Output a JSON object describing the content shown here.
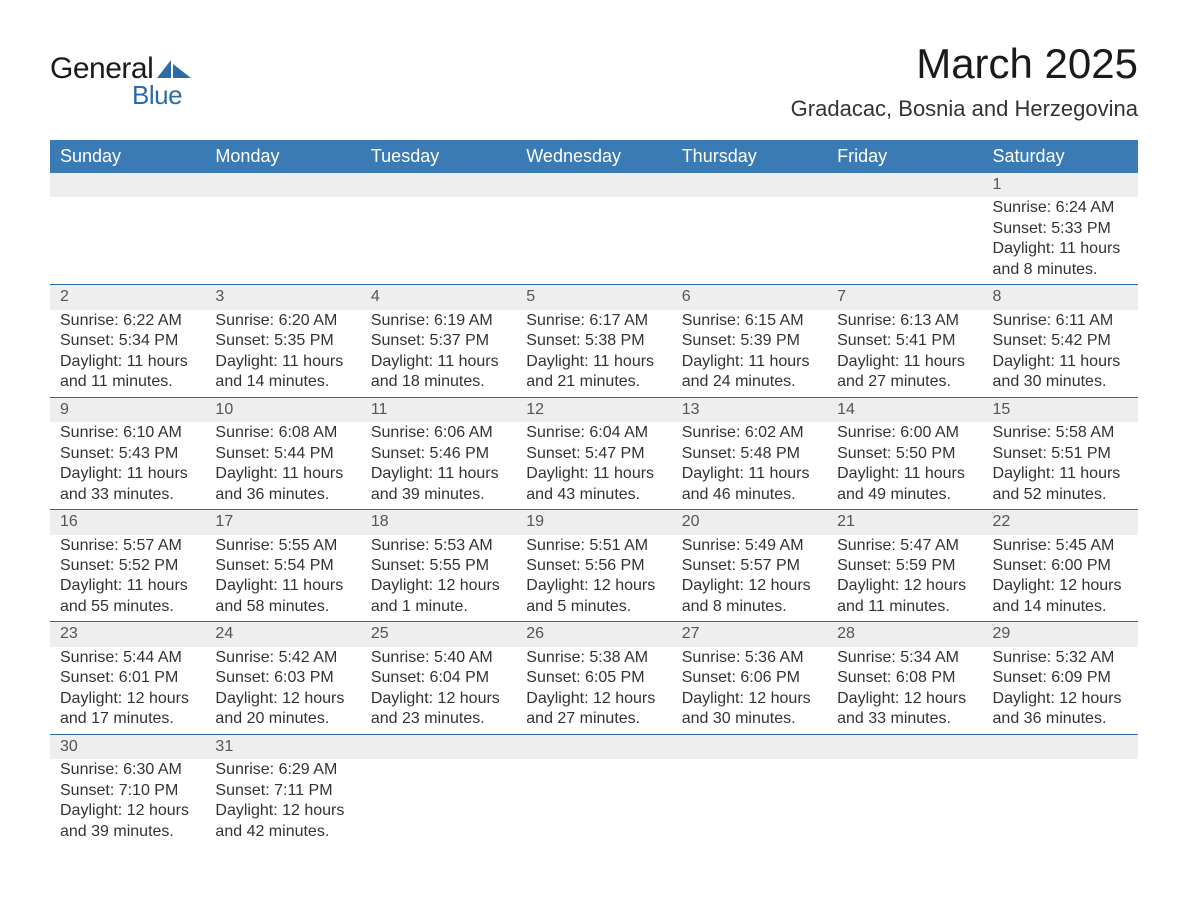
{
  "logo": {
    "word1": "General",
    "word2": "Blue",
    "shape_color": "#2a6ba8"
  },
  "title": "March 2025",
  "location": "Gradacac, Bosnia and Herzegovina",
  "colors": {
    "header_bg": "#3a7ab5",
    "header_text": "#ffffff",
    "daynum_bg": "#eeeeee",
    "row_border": "#2a6ba8",
    "text": "#333333",
    "background": "#ffffff"
  },
  "typography": {
    "title_fontsize": 42,
    "location_fontsize": 22,
    "dayheader_fontsize": 18,
    "body_fontsize": 16
  },
  "day_headers": [
    "Sunday",
    "Monday",
    "Tuesday",
    "Wednesday",
    "Thursday",
    "Friday",
    "Saturday"
  ],
  "weeks": [
    {
      "nums": [
        "",
        "",
        "",
        "",
        "",
        "",
        "1"
      ],
      "days": [
        null,
        null,
        null,
        null,
        null,
        null,
        {
          "sunrise": "Sunrise: 6:24 AM",
          "sunset": "Sunset: 5:33 PM",
          "d1": "Daylight: 11 hours",
          "d2": "and 8 minutes."
        }
      ]
    },
    {
      "nums": [
        "2",
        "3",
        "4",
        "5",
        "6",
        "7",
        "8"
      ],
      "days": [
        {
          "sunrise": "Sunrise: 6:22 AM",
          "sunset": "Sunset: 5:34 PM",
          "d1": "Daylight: 11 hours",
          "d2": "and 11 minutes."
        },
        {
          "sunrise": "Sunrise: 6:20 AM",
          "sunset": "Sunset: 5:35 PM",
          "d1": "Daylight: 11 hours",
          "d2": "and 14 minutes."
        },
        {
          "sunrise": "Sunrise: 6:19 AM",
          "sunset": "Sunset: 5:37 PM",
          "d1": "Daylight: 11 hours",
          "d2": "and 18 minutes."
        },
        {
          "sunrise": "Sunrise: 6:17 AM",
          "sunset": "Sunset: 5:38 PM",
          "d1": "Daylight: 11 hours",
          "d2": "and 21 minutes."
        },
        {
          "sunrise": "Sunrise: 6:15 AM",
          "sunset": "Sunset: 5:39 PM",
          "d1": "Daylight: 11 hours",
          "d2": "and 24 minutes."
        },
        {
          "sunrise": "Sunrise: 6:13 AM",
          "sunset": "Sunset: 5:41 PM",
          "d1": "Daylight: 11 hours",
          "d2": "and 27 minutes."
        },
        {
          "sunrise": "Sunrise: 6:11 AM",
          "sunset": "Sunset: 5:42 PM",
          "d1": "Daylight: 11 hours",
          "d2": "and 30 minutes."
        }
      ]
    },
    {
      "nums": [
        "9",
        "10",
        "11",
        "12",
        "13",
        "14",
        "15"
      ],
      "days": [
        {
          "sunrise": "Sunrise: 6:10 AM",
          "sunset": "Sunset: 5:43 PM",
          "d1": "Daylight: 11 hours",
          "d2": "and 33 minutes."
        },
        {
          "sunrise": "Sunrise: 6:08 AM",
          "sunset": "Sunset: 5:44 PM",
          "d1": "Daylight: 11 hours",
          "d2": "and 36 minutes."
        },
        {
          "sunrise": "Sunrise: 6:06 AM",
          "sunset": "Sunset: 5:46 PM",
          "d1": "Daylight: 11 hours",
          "d2": "and 39 minutes."
        },
        {
          "sunrise": "Sunrise: 6:04 AM",
          "sunset": "Sunset: 5:47 PM",
          "d1": "Daylight: 11 hours",
          "d2": "and 43 minutes."
        },
        {
          "sunrise": "Sunrise: 6:02 AM",
          "sunset": "Sunset: 5:48 PM",
          "d1": "Daylight: 11 hours",
          "d2": "and 46 minutes."
        },
        {
          "sunrise": "Sunrise: 6:00 AM",
          "sunset": "Sunset: 5:50 PM",
          "d1": "Daylight: 11 hours",
          "d2": "and 49 minutes."
        },
        {
          "sunrise": "Sunrise: 5:58 AM",
          "sunset": "Sunset: 5:51 PM",
          "d1": "Daylight: 11 hours",
          "d2": "and 52 minutes."
        }
      ]
    },
    {
      "nums": [
        "16",
        "17",
        "18",
        "19",
        "20",
        "21",
        "22"
      ],
      "days": [
        {
          "sunrise": "Sunrise: 5:57 AM",
          "sunset": "Sunset: 5:52 PM",
          "d1": "Daylight: 11 hours",
          "d2": "and 55 minutes."
        },
        {
          "sunrise": "Sunrise: 5:55 AM",
          "sunset": "Sunset: 5:54 PM",
          "d1": "Daylight: 11 hours",
          "d2": "and 58 minutes."
        },
        {
          "sunrise": "Sunrise: 5:53 AM",
          "sunset": "Sunset: 5:55 PM",
          "d1": "Daylight: 12 hours",
          "d2": "and 1 minute."
        },
        {
          "sunrise": "Sunrise: 5:51 AM",
          "sunset": "Sunset: 5:56 PM",
          "d1": "Daylight: 12 hours",
          "d2": "and 5 minutes."
        },
        {
          "sunrise": "Sunrise: 5:49 AM",
          "sunset": "Sunset: 5:57 PM",
          "d1": "Daylight: 12 hours",
          "d2": "and 8 minutes."
        },
        {
          "sunrise": "Sunrise: 5:47 AM",
          "sunset": "Sunset: 5:59 PM",
          "d1": "Daylight: 12 hours",
          "d2": "and 11 minutes."
        },
        {
          "sunrise": "Sunrise: 5:45 AM",
          "sunset": "Sunset: 6:00 PM",
          "d1": "Daylight: 12 hours",
          "d2": "and 14 minutes."
        }
      ]
    },
    {
      "nums": [
        "23",
        "24",
        "25",
        "26",
        "27",
        "28",
        "29"
      ],
      "days": [
        {
          "sunrise": "Sunrise: 5:44 AM",
          "sunset": "Sunset: 6:01 PM",
          "d1": "Daylight: 12 hours",
          "d2": "and 17 minutes."
        },
        {
          "sunrise": "Sunrise: 5:42 AM",
          "sunset": "Sunset: 6:03 PM",
          "d1": "Daylight: 12 hours",
          "d2": "and 20 minutes."
        },
        {
          "sunrise": "Sunrise: 5:40 AM",
          "sunset": "Sunset: 6:04 PM",
          "d1": "Daylight: 12 hours",
          "d2": "and 23 minutes."
        },
        {
          "sunrise": "Sunrise: 5:38 AM",
          "sunset": "Sunset: 6:05 PM",
          "d1": "Daylight: 12 hours",
          "d2": "and 27 minutes."
        },
        {
          "sunrise": "Sunrise: 5:36 AM",
          "sunset": "Sunset: 6:06 PM",
          "d1": "Daylight: 12 hours",
          "d2": "and 30 minutes."
        },
        {
          "sunrise": "Sunrise: 5:34 AM",
          "sunset": "Sunset: 6:08 PM",
          "d1": "Daylight: 12 hours",
          "d2": "and 33 minutes."
        },
        {
          "sunrise": "Sunrise: 5:32 AM",
          "sunset": "Sunset: 6:09 PM",
          "d1": "Daylight: 12 hours",
          "d2": "and 36 minutes."
        }
      ]
    },
    {
      "nums": [
        "30",
        "31",
        "",
        "",
        "",
        "",
        ""
      ],
      "days": [
        {
          "sunrise": "Sunrise: 6:30 AM",
          "sunset": "Sunset: 7:10 PM",
          "d1": "Daylight: 12 hours",
          "d2": "and 39 minutes."
        },
        {
          "sunrise": "Sunrise: 6:29 AM",
          "sunset": "Sunset: 7:11 PM",
          "d1": "Daylight: 12 hours",
          "d2": "and 42 minutes."
        },
        null,
        null,
        null,
        null,
        null
      ]
    }
  ]
}
